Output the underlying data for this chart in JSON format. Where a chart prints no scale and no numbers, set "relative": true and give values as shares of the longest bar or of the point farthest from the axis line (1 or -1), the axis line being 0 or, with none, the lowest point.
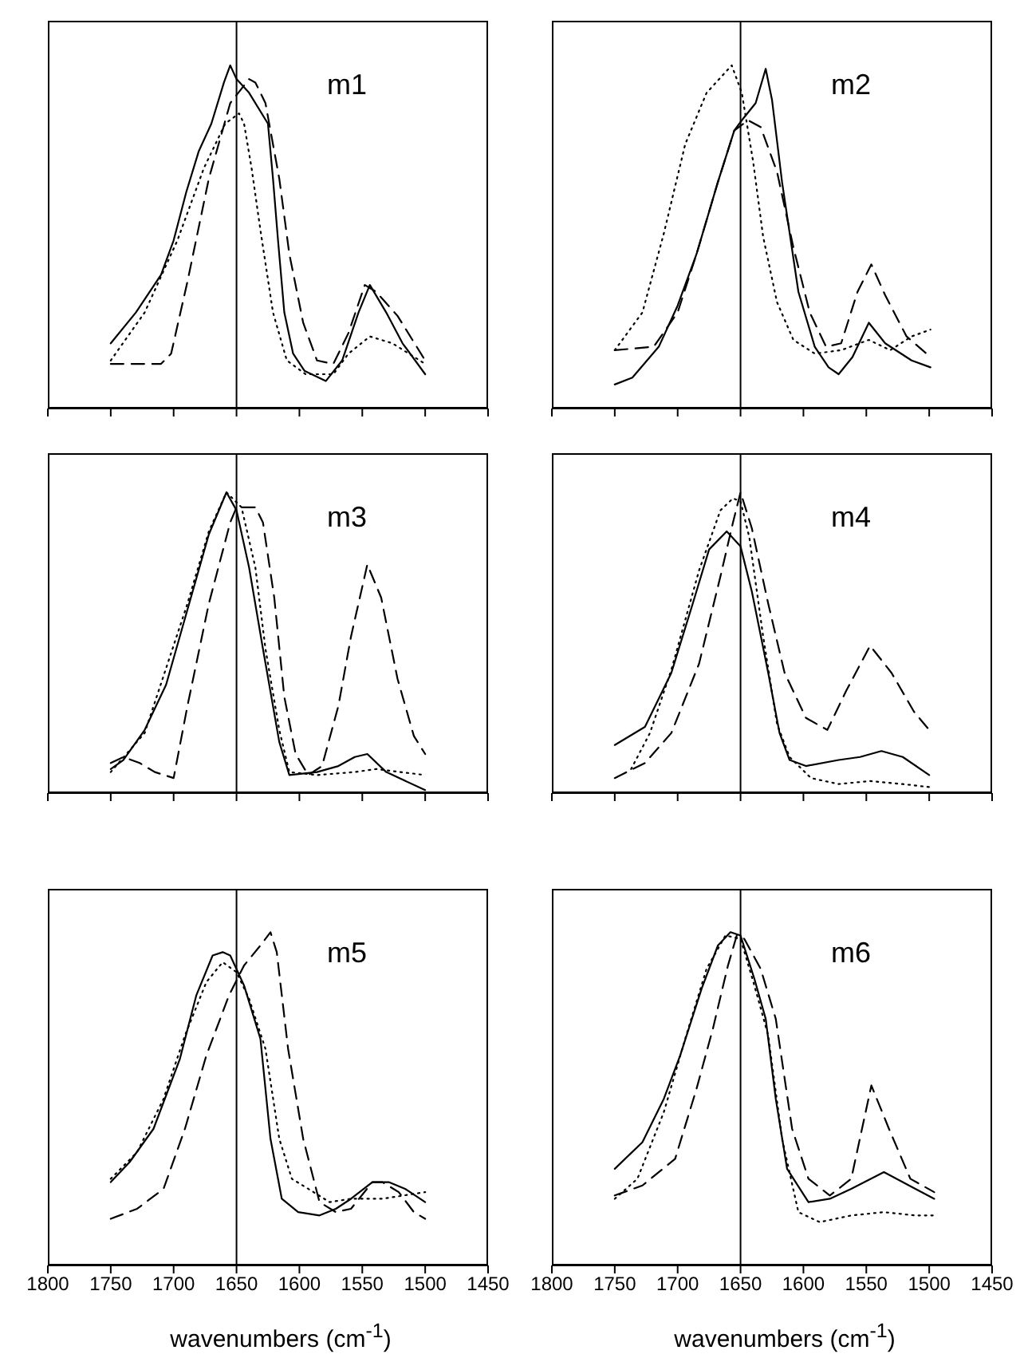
{
  "chart_data": [
    {
      "type": "line",
      "title": "m1",
      "relative": true,
      "xlim": [
        1800,
        1450
      ],
      "xticks": [
        1800,
        1750,
        1700,
        1650,
        1600,
        1550,
        1500,
        1450
      ],
      "tick_labels": false,
      "ref_lines": [
        {
          "axis": "x",
          "value": 1650
        }
      ],
      "series": [
        {
          "color": "#000000",
          "line_style": "solid",
          "x": [
            1750,
            1730,
            1710,
            1700,
            1690,
            1680,
            1670,
            1660,
            1655,
            1650,
            1640,
            1625,
            1621,
            1617,
            1612,
            1605,
            1596,
            1579,
            1566,
            1553,
            1544,
            1531,
            1518,
            1500
          ],
          "values": [
            0.19,
            0.28,
            0.39,
            0.49,
            0.63,
            0.75,
            0.83,
            0.95,
            1.0,
            0.96,
            0.92,
            0.83,
            0.67,
            0.49,
            0.28,
            0.16,
            0.11,
            0.08,
            0.14,
            0.28,
            0.36,
            0.28,
            0.19,
            0.1
          ]
        },
        {
          "color": "#000000",
          "line_style": "dashed",
          "x": [
            1750,
            1710,
            1702,
            1689,
            1672,
            1655,
            1640,
            1635,
            1627,
            1616,
            1608,
            1597,
            1586,
            1573,
            1561,
            1548,
            1539,
            1522,
            1500
          ],
          "values": [
            0.13,
            0.13,
            0.16,
            0.37,
            0.67,
            0.89,
            0.96,
            0.95,
            0.89,
            0.67,
            0.45,
            0.25,
            0.14,
            0.13,
            0.22,
            0.36,
            0.34,
            0.27,
            0.14
          ]
        },
        {
          "color": "#000000",
          "line_style": "dotted",
          "x": [
            1750,
            1723,
            1697,
            1676,
            1659,
            1648,
            1644,
            1638,
            1631,
            1621,
            1610,
            1595,
            1573,
            1561,
            1544,
            1526,
            1500
          ],
          "values": [
            0.14,
            0.28,
            0.49,
            0.7,
            0.83,
            0.86,
            0.83,
            0.7,
            0.52,
            0.28,
            0.14,
            0.1,
            0.1,
            0.16,
            0.21,
            0.19,
            0.13
          ]
        }
      ]
    },
    {
      "type": "line",
      "title": "m2",
      "relative": true,
      "xlim": [
        1800,
        1450
      ],
      "xticks": [
        1800,
        1750,
        1700,
        1650,
        1600,
        1550,
        1500,
        1450
      ],
      "tick_labels": false,
      "ref_lines": [
        {
          "axis": "x",
          "value": 1650
        }
      ],
      "series": [
        {
          "color": "#000000",
          "line_style": "solid",
          "x": [
            1750,
            1736,
            1715,
            1700,
            1685,
            1668,
            1655,
            1649,
            1638,
            1630,
            1625,
            1617,
            1604,
            1591,
            1580,
            1572,
            1561,
            1548,
            1535,
            1514,
            1499
          ],
          "values": [
            0.07,
            0.09,
            0.18,
            0.3,
            0.45,
            0.66,
            0.81,
            0.84,
            0.89,
            0.99,
            0.9,
            0.66,
            0.34,
            0.18,
            0.12,
            0.1,
            0.15,
            0.25,
            0.19,
            0.14,
            0.12
          ]
        },
        {
          "color": "#000000",
          "line_style": "dashed",
          "x": [
            1750,
            1719,
            1700,
            1685,
            1668,
            1655,
            1644,
            1634,
            1621,
            1608,
            1595,
            1582,
            1570,
            1557,
            1546,
            1535,
            1518,
            1499
          ],
          "values": [
            0.17,
            0.18,
            0.28,
            0.45,
            0.66,
            0.81,
            0.84,
            0.82,
            0.69,
            0.47,
            0.28,
            0.18,
            0.19,
            0.34,
            0.42,
            0.33,
            0.21,
            0.15
          ]
        },
        {
          "color": "#000000",
          "line_style": "dotted",
          "x": [
            1750,
            1728,
            1711,
            1694,
            1677,
            1657,
            1649,
            1640,
            1632,
            1621,
            1608,
            1591,
            1570,
            1548,
            1531,
            1514,
            1499
          ],
          "values": [
            0.17,
            0.28,
            0.51,
            0.77,
            0.92,
            1.0,
            0.92,
            0.72,
            0.5,
            0.31,
            0.2,
            0.16,
            0.17,
            0.2,
            0.17,
            0.21,
            0.23
          ]
        }
      ]
    },
    {
      "type": "line",
      "title": "m3",
      "relative": true,
      "xlim": [
        1800,
        1450
      ],
      "xticks": [
        1800,
        1750,
        1700,
        1650,
        1600,
        1550,
        1500,
        1450
      ],
      "tick_labels": false,
      "ref_lines": [
        {
          "axis": "x",
          "value": 1650
        }
      ],
      "series": [
        {
          "color": "#000000",
          "line_style": "solid",
          "x": [
            1750,
            1740,
            1723,
            1706,
            1689,
            1672,
            1658,
            1650,
            1640,
            1629,
            1616,
            1608,
            1586,
            1569,
            1556,
            1546,
            1531,
            1500
          ],
          "values": [
            0.08,
            0.11,
            0.21,
            0.36,
            0.61,
            0.86,
            1.0,
            0.94,
            0.75,
            0.48,
            0.17,
            0.06,
            0.07,
            0.09,
            0.12,
            0.13,
            0.07,
            0.01
          ]
        },
        {
          "color": "#000000",
          "line_style": "dashed",
          "x": [
            1750,
            1740,
            1727,
            1715,
            1700,
            1689,
            1672,
            1655,
            1650,
            1635,
            1629,
            1620,
            1612,
            1603,
            1593,
            1582,
            1569,
            1559,
            1546,
            1535,
            1522,
            1509,
            1500
          ],
          "values": [
            0.1,
            0.12,
            0.1,
            0.07,
            0.05,
            0.29,
            0.63,
            0.9,
            0.95,
            0.95,
            0.9,
            0.65,
            0.32,
            0.13,
            0.06,
            0.09,
            0.29,
            0.52,
            0.76,
            0.65,
            0.38,
            0.19,
            0.13
          ]
        },
        {
          "color": "#000000",
          "line_style": "dotted",
          "x": [
            1750,
            1723,
            1689,
            1672,
            1658,
            1646,
            1635,
            1627,
            1616,
            1608,
            1586,
            1556,
            1539,
            1500
          ],
          "values": [
            0.07,
            0.2,
            0.63,
            0.87,
            1.0,
            0.95,
            0.75,
            0.48,
            0.21,
            0.07,
            0.06,
            0.07,
            0.08,
            0.06
          ]
        }
      ]
    },
    {
      "type": "line",
      "title": "m4",
      "relative": true,
      "xlim": [
        1800,
        1450
      ],
      "xticks": [
        1800,
        1750,
        1700,
        1650,
        1600,
        1550,
        1500,
        1450
      ],
      "tick_labels": false,
      "ref_lines": [
        {
          "axis": "x",
          "value": 1650
        }
      ],
      "series": [
        {
          "color": "#000000",
          "line_style": "solid",
          "x": [
            1750,
            1726,
            1705,
            1688,
            1675,
            1661,
            1650,
            1641,
            1628,
            1619,
            1611,
            1598,
            1572,
            1555,
            1538,
            1521,
            1500
          ],
          "values": [
            0.16,
            0.22,
            0.4,
            0.63,
            0.81,
            0.87,
            0.82,
            0.67,
            0.4,
            0.2,
            0.11,
            0.09,
            0.11,
            0.12,
            0.14,
            0.12,
            0.06
          ]
        },
        {
          "color": "#000000",
          "line_style": "dashed",
          "x": [
            1750,
            1726,
            1705,
            1683,
            1666,
            1656,
            1650,
            1641,
            1628,
            1615,
            1598,
            1581,
            1566,
            1547,
            1530,
            1512,
            1500
          ],
          "values": [
            0.05,
            0.1,
            0.2,
            0.43,
            0.72,
            0.9,
            1.0,
            0.88,
            0.63,
            0.4,
            0.25,
            0.21,
            0.34,
            0.49,
            0.4,
            0.27,
            0.21
          ]
        },
        {
          "color": "#000000",
          "line_style": "dotted",
          "x": [
            1737,
            1722,
            1705,
            1683,
            1666,
            1656,
            1650,
            1643,
            1632,
            1621,
            1611,
            1594,
            1572,
            1547,
            1521,
            1500
          ],
          "values": [
            0.08,
            0.2,
            0.41,
            0.74,
            0.94,
            0.98,
            0.97,
            0.85,
            0.52,
            0.23,
            0.12,
            0.05,
            0.03,
            0.04,
            0.03,
            0.02
          ]
        }
      ]
    },
    {
      "type": "line",
      "title": "m5",
      "relative": true,
      "xlabel": "wavenumbers (cm$^{-1}$)",
      "xlim": [
        1800,
        1450
      ],
      "xticks": [
        1800,
        1750,
        1700,
        1650,
        1600,
        1550,
        1500,
        1450
      ],
      "tick_labels": "x",
      "ref_lines": [
        {
          "axis": "x",
          "value": 1650
        }
      ],
      "series": [
        {
          "color": "#000000",
          "line_style": "solid",
          "x": [
            1750,
            1735,
            1716,
            1695,
            1682,
            1669,
            1661,
            1655,
            1644,
            1631,
            1623,
            1614,
            1601,
            1584,
            1571,
            1559,
            1542,
            1529,
            1516,
            1500
          ],
          "values": [
            0.25,
            0.31,
            0.41,
            0.62,
            0.81,
            0.93,
            0.94,
            0.93,
            0.84,
            0.68,
            0.38,
            0.2,
            0.16,
            0.15,
            0.17,
            0.2,
            0.25,
            0.25,
            0.23,
            0.19
          ]
        },
        {
          "color": "#000000",
          "line_style": "dashed",
          "x": [
            1750,
            1729,
            1708,
            1691,
            1674,
            1656,
            1644,
            1631,
            1623,
            1618,
            1609,
            1597,
            1584,
            1571,
            1559,
            1542,
            1534,
            1521,
            1509,
            1500
          ],
          "values": [
            0.14,
            0.17,
            0.23,
            0.41,
            0.63,
            0.81,
            0.9,
            0.96,
            1.0,
            0.94,
            0.65,
            0.38,
            0.19,
            0.16,
            0.17,
            0.25,
            0.25,
            0.22,
            0.16,
            0.14
          ]
        },
        {
          "color": "#000000",
          "line_style": "dotted",
          "x": [
            1750,
            1729,
            1708,
            1691,
            1674,
            1661,
            1650,
            1640,
            1627,
            1616,
            1606,
            1593,
            1576,
            1559,
            1534,
            1500
          ],
          "values": [
            0.26,
            0.34,
            0.5,
            0.69,
            0.85,
            0.91,
            0.88,
            0.8,
            0.65,
            0.38,
            0.26,
            0.23,
            0.19,
            0.2,
            0.2,
            0.22
          ]
        }
      ]
    },
    {
      "type": "line",
      "title": "m6",
      "relative": true,
      "xlabel": "wavenumbers (cm$^{-1}$)",
      "xlim": [
        1800,
        1450
      ],
      "xticks": [
        1800,
        1750,
        1700,
        1650,
        1600,
        1550,
        1500,
        1450
      ],
      "tick_labels": "x",
      "ref_lines": [
        {
          "axis": "x",
          "value": 1650
        }
      ],
      "series": [
        {
          "color": "#000000",
          "line_style": "solid",
          "x": [
            1750,
            1728,
            1711,
            1698,
            1681,
            1668,
            1658,
            1650,
            1639,
            1630,
            1622,
            1613,
            1596,
            1579,
            1562,
            1536,
            1511,
            1496
          ],
          "values": [
            0.29,
            0.37,
            0.5,
            0.63,
            0.83,
            0.96,
            1.0,
            0.99,
            0.86,
            0.74,
            0.5,
            0.29,
            0.19,
            0.2,
            0.23,
            0.28,
            0.23,
            0.2
          ]
        },
        {
          "color": "#000000",
          "line_style": "dashed",
          "x": [
            1750,
            1728,
            1702,
            1685,
            1672,
            1660,
            1653,
            1647,
            1634,
            1622,
            1609,
            1596,
            1579,
            1562,
            1546,
            1532,
            1515,
            1496
          ],
          "values": [
            0.21,
            0.24,
            0.32,
            0.53,
            0.71,
            0.9,
            0.99,
            0.98,
            0.89,
            0.74,
            0.41,
            0.26,
            0.21,
            0.26,
            0.54,
            0.41,
            0.26,
            0.22
          ]
        },
        {
          "color": "#000000",
          "line_style": "dotted",
          "x": [
            1750,
            1732,
            1711,
            1694,
            1677,
            1662,
            1650,
            1639,
            1628,
            1617,
            1604,
            1587,
            1562,
            1536,
            1511,
            1496
          ],
          "values": [
            0.2,
            0.26,
            0.46,
            0.68,
            0.89,
            0.99,
            0.98,
            0.84,
            0.69,
            0.38,
            0.16,
            0.13,
            0.15,
            0.16,
            0.15,
            0.15
          ]
        }
      ]
    }
  ]
}
